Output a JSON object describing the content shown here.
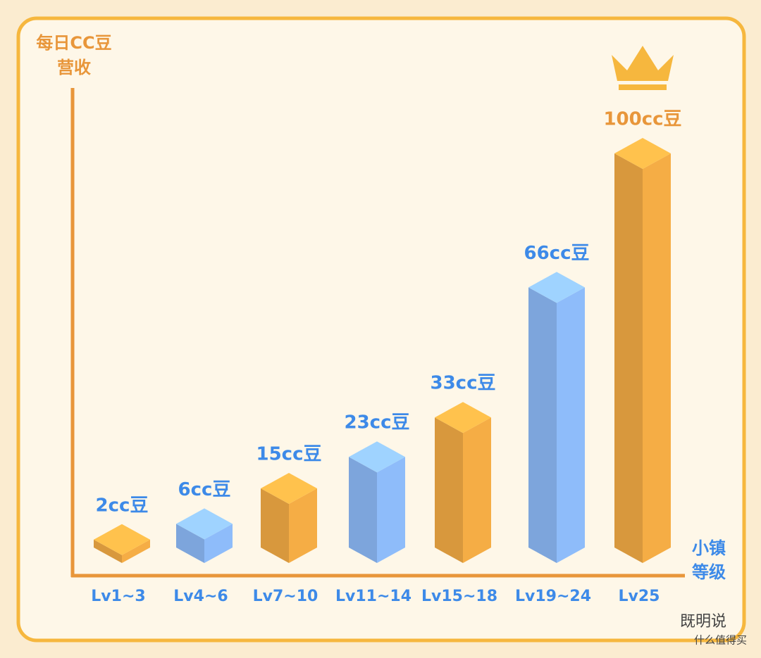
{
  "chart_data": {
    "type": "bar",
    "y_label": [
      "每日CC豆",
      "营收"
    ],
    "x_label": [
      "小镇",
      "等级"
    ],
    "categories": [
      "Lv1~3",
      "Lv4~6",
      "Lv7~10",
      "Lv11~14",
      "Lv15~18",
      "Lv19~24",
      "Lv25"
    ],
    "values": [
      2,
      6,
      15,
      23,
      33,
      66,
      100
    ],
    "value_labels": [
      "2cc豆",
      "6cc豆",
      "15cc豆",
      "23cc豆",
      "33cc豆",
      "66cc豆",
      "100cc豆"
    ],
    "colors": [
      "#f5ad45",
      "#8ebcfa",
      "#f5ad45",
      "#8ebcfa",
      "#f5ad45",
      "#8ebcfa",
      "#f5ad45"
    ],
    "ylim": [
      0,
      100
    ]
  },
  "watermark": [
    "既明说",
    "什么值得买"
  ]
}
